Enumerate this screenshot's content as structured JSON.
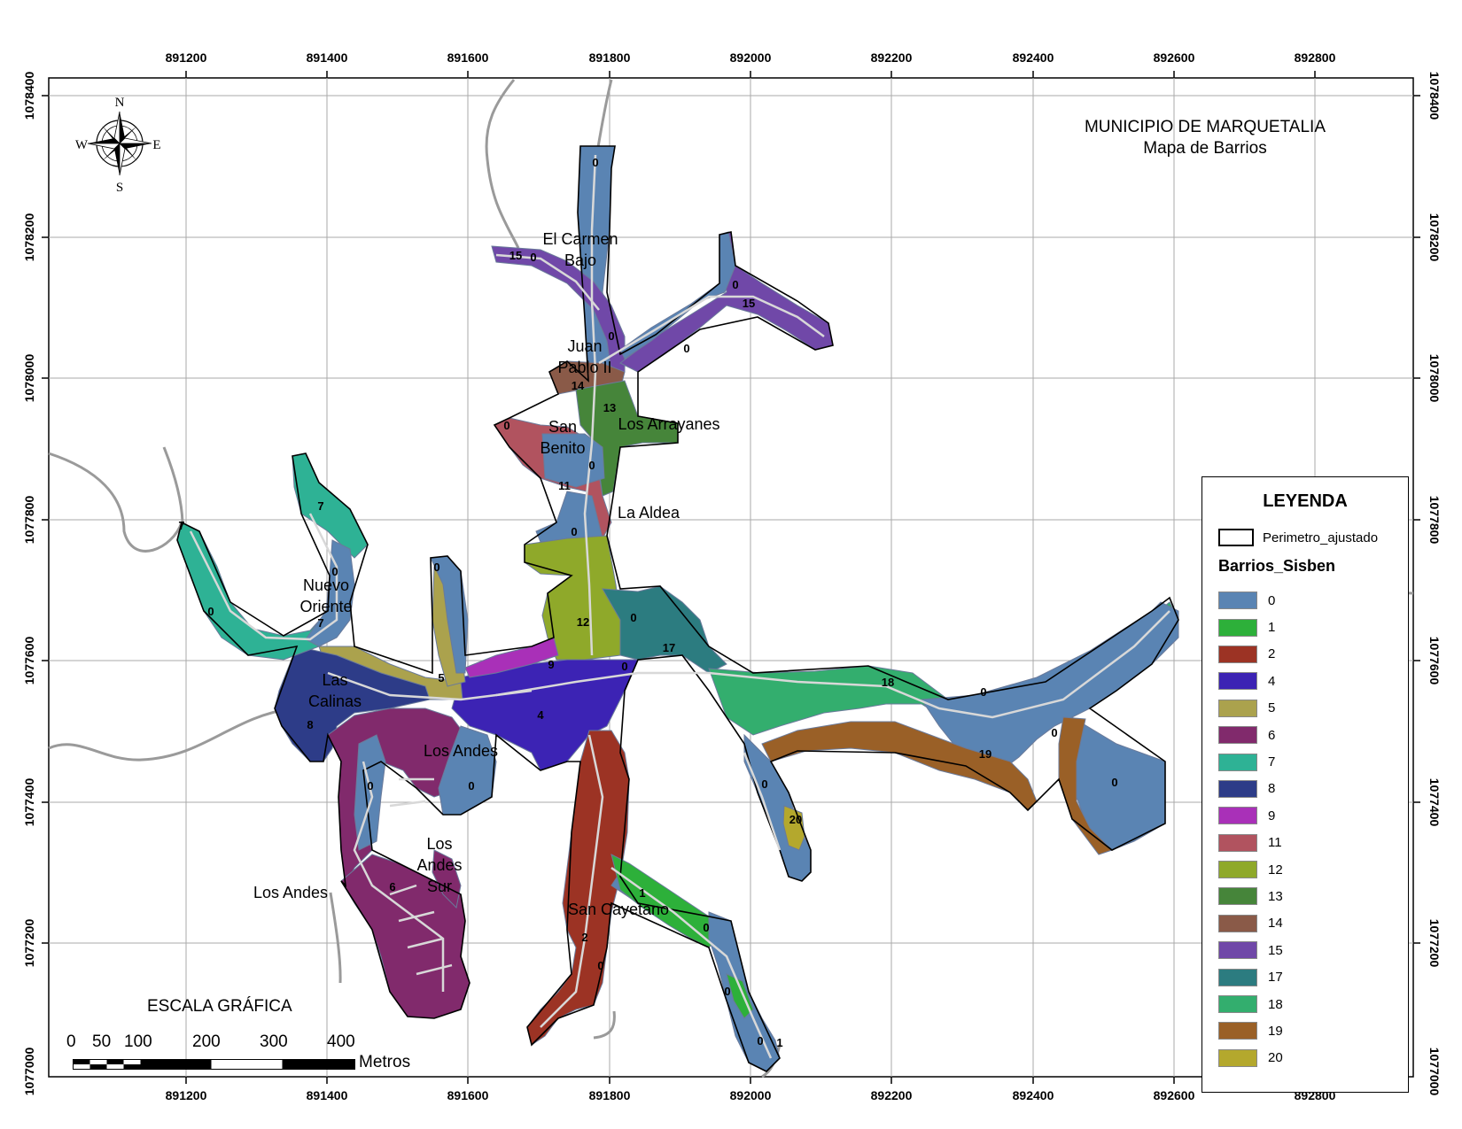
{
  "map": {
    "title": "MUNICIPIO DE MARQUETALIA",
    "subtitle": "Mapa de Barrios",
    "x_ticks": [
      "891200",
      "891400",
      "891600",
      "891800",
      "892000",
      "892200",
      "892400",
      "892600",
      "892800"
    ],
    "y_ticks": [
      "1078400",
      "1078200",
      "1078000",
      "1077800",
      "1077600",
      "1077400",
      "1077200",
      "1077000"
    ],
    "compass": {
      "n": "N",
      "s": "S",
      "e": "E",
      "w": "W"
    },
    "barrio_names": [
      {
        "id": "el-carmen-bajo",
        "lines": [
          "El Carmen",
          "Bajo"
        ]
      },
      {
        "id": "juan-pablo-ii",
        "lines": [
          "Juan",
          "Pablo II"
        ]
      },
      {
        "id": "san-benito",
        "lines": [
          "San",
          "Benito"
        ]
      },
      {
        "id": "los-arrayanes",
        "lines": [
          "Los Arrayanes"
        ]
      },
      {
        "id": "la-aldea",
        "lines": [
          "La Aldea"
        ]
      },
      {
        "id": "nuevo-oriente",
        "lines": [
          "Nuevo",
          "Oriente"
        ]
      },
      {
        "id": "las-calinas",
        "lines": [
          "Las",
          "Calinas"
        ]
      },
      {
        "id": "los-andes-center",
        "lines": [
          "Los Andes"
        ]
      },
      {
        "id": "los-andes-sur",
        "lines": [
          "Los",
          "Andes",
          "Sur"
        ]
      },
      {
        "id": "los-andes-west",
        "lines": [
          "Los Andes"
        ]
      },
      {
        "id": "san-cayetano",
        "lines": [
          "San Cayetano"
        ]
      }
    ],
    "zone_codes": [
      "0",
      "15",
      "0",
      "0",
      "15",
      "0",
      "0",
      "14",
      "13",
      "0",
      "0",
      "11",
      "0",
      "7",
      "0",
      "7",
      "0",
      "7",
      "0",
      "12",
      "0",
      "17",
      "9",
      "0",
      "5",
      "4",
      "8",
      "0",
      "0",
      "18",
      "0",
      "0",
      "19",
      "0",
      "0",
      "20",
      "1",
      "0",
      "0",
      "2",
      "0",
      "0",
      "1",
      "6"
    ]
  },
  "legend": {
    "title": "LEYENDA",
    "perimeter_label": "Perimetro_ajustado",
    "layer_title": "Barrios_Sisben",
    "classes": [
      {
        "label": "0",
        "color": "#5A84B3"
      },
      {
        "label": "1",
        "color": "#2DB03A"
      },
      {
        "label": "2",
        "color": "#9C3324"
      },
      {
        "label": "4",
        "color": "#3C23B4"
      },
      {
        "label": "5",
        "color": "#ABA24D"
      },
      {
        "label": "6",
        "color": "#812A6C"
      },
      {
        "label": "7",
        "color": "#2EB295"
      },
      {
        "label": "8",
        "color": "#2D3C88"
      },
      {
        "label": "9",
        "color": "#A930B8"
      },
      {
        "label": "11",
        "color": "#B1535F"
      },
      {
        "label": "12",
        "color": "#8FA92A"
      },
      {
        "label": "13",
        "color": "#46853A"
      },
      {
        "label": "14",
        "color": "#8A5A48"
      },
      {
        "label": "15",
        "color": "#7048A8"
      },
      {
        "label": "17",
        "color": "#2C7C80"
      },
      {
        "label": "18",
        "color": "#33AE6E"
      },
      {
        "label": "19",
        "color": "#9A6027"
      },
      {
        "label": "20",
        "color": "#B4A82D"
      }
    ]
  },
  "scale_bar": {
    "title": "ESCALA GRÁFICA",
    "unit": "Metros",
    "labels": [
      "0",
      "50",
      "100",
      "200",
      "300",
      "400"
    ]
  }
}
